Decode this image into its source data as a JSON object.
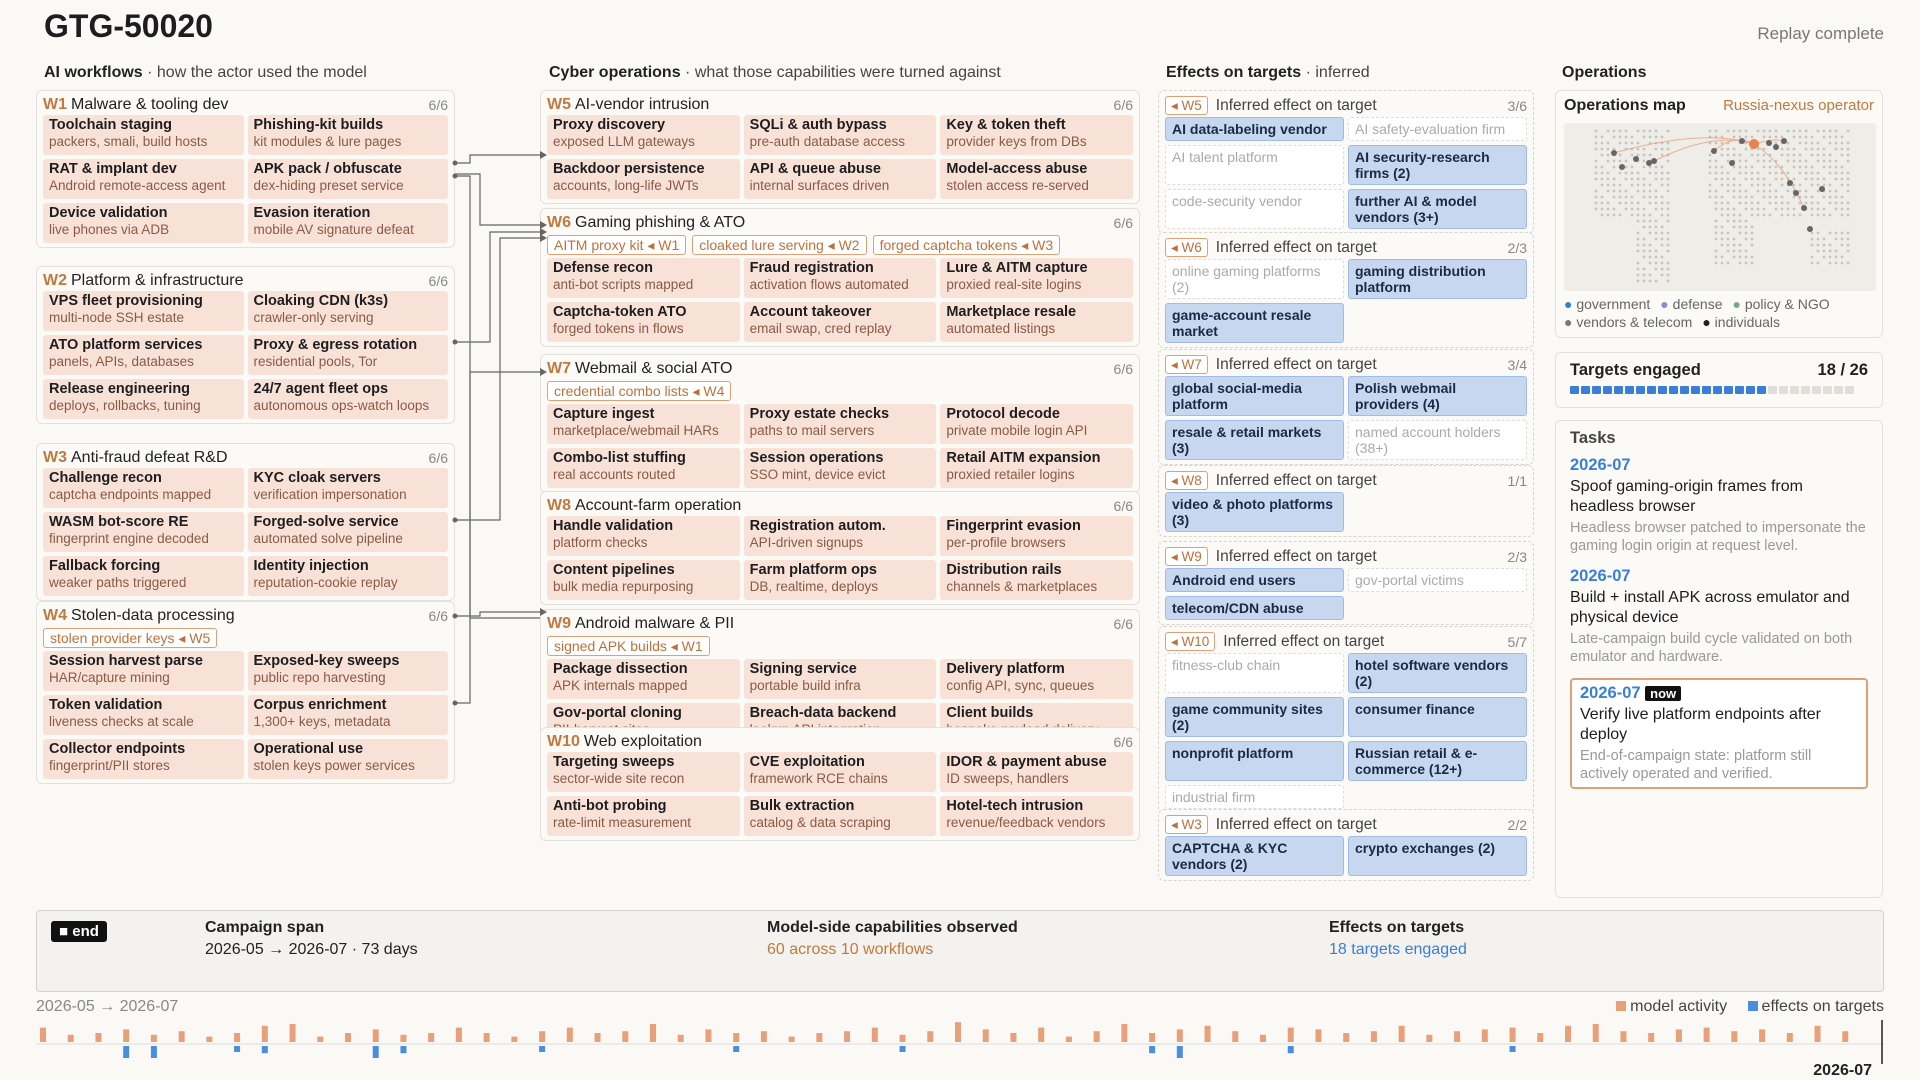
{
  "title": "GTG-50020",
  "status": "Replay complete",
  "columns": {
    "ai": {
      "title": "AI workflows",
      "sub": " · how the actor used the model"
    },
    "cyber": {
      "title": "Cyber operations",
      "sub": " · what those capabilities were turned against"
    },
    "effects": {
      "title": "Effects on targets",
      "sub": " · inferred"
    },
    "ops": {
      "title": "Operations",
      "sub": ""
    }
  },
  "workflows": [
    {
      "code": "W1",
      "name": "Malware & tooling dev",
      "count": "6/6",
      "tags": [],
      "items": [
        {
          "n": "Toolchain staging",
          "d": "packers, smali, build hosts"
        },
        {
          "n": "Phishing-kit builds",
          "d": "kit modules & lure pages"
        },
        {
          "n": "RAT & implant dev",
          "d": "Android remote-access agent"
        },
        {
          "n": "APK pack / obfuscate",
          "d": "dex-hiding preset service"
        },
        {
          "n": "Device validation",
          "d": "live phones via ADB"
        },
        {
          "n": "Evasion iteration",
          "d": "mobile AV signature defeat"
        }
      ]
    },
    {
      "code": "W2",
      "name": "Platform & infrastructure",
      "count": "6/6",
      "tags": [],
      "items": [
        {
          "n": "VPS fleet provisioning",
          "d": "multi-node SSH estate"
        },
        {
          "n": "Cloaking CDN (k3s)",
          "d": "crawler-only serving"
        },
        {
          "n": "ATO platform services",
          "d": "panels, APIs, databases"
        },
        {
          "n": "Proxy & egress rotation",
          "d": "residential pools, Tor"
        },
        {
          "n": "Release engineering",
          "d": "deploys, rollbacks, tuning"
        },
        {
          "n": "24/7 agent fleet ops",
          "d": "autonomous ops-watch loops"
        }
      ]
    },
    {
      "code": "W3",
      "name": "Anti-fraud defeat R&D",
      "count": "6/6",
      "tags": [],
      "items": [
        {
          "n": "Challenge recon",
          "d": "captcha endpoints mapped"
        },
        {
          "n": "KYC cloak servers",
          "d": "verification impersonation"
        },
        {
          "n": "WASM bot-score RE",
          "d": "fingerprint engine decoded"
        },
        {
          "n": "Forged-solve service",
          "d": "automated solve pipeline"
        },
        {
          "n": "Fallback forcing",
          "d": "weaker paths triggered"
        },
        {
          "n": "Identity injection",
          "d": "reputation-cookie replay"
        }
      ]
    },
    {
      "code": "W4",
      "name": "Stolen-data processing",
      "count": "6/6",
      "tags": [
        "stolen provider keys ◂ W5"
      ],
      "items": [
        {
          "n": "Session harvest parse",
          "d": "HAR/capture mining"
        },
        {
          "n": "Exposed-key sweeps",
          "d": "public repo harvesting"
        },
        {
          "n": "Token validation",
          "d": "liveness checks at scale"
        },
        {
          "n": "Corpus enrichment",
          "d": "1,300+ keys, metadata"
        },
        {
          "n": "Collector endpoints",
          "d": "fingerprint/PII stores"
        },
        {
          "n": "Operational use",
          "d": "stolen keys power services"
        }
      ]
    },
    {
      "code": "W5",
      "name": "AI-vendor intrusion",
      "count": "6/6",
      "tags": [],
      "items": [
        {
          "n": "Proxy discovery",
          "d": "exposed LLM gateways"
        },
        {
          "n": "SQLi & auth bypass",
          "d": "pre-auth database access"
        },
        {
          "n": "Key & token theft",
          "d": "provider keys from DBs"
        },
        {
          "n": "Backdoor persistence",
          "d": "accounts, long-life JWTs"
        },
        {
          "n": "API & queue abuse",
          "d": "internal surfaces driven"
        },
        {
          "n": "Model-access abuse",
          "d": "stolen access re-served"
        }
      ]
    },
    {
      "code": "W6",
      "name": "Gaming phishing & ATO",
      "count": "6/6",
      "tags": [
        "AITM proxy kit ◂ W1",
        "cloaked lure serving ◂ W2",
        "forged captcha tokens ◂ W3"
      ],
      "items": [
        {
          "n": "Defense recon",
          "d": "anti-bot scripts mapped"
        },
        {
          "n": "Fraud registration",
          "d": "activation flows automated"
        },
        {
          "n": "Lure & AITM capture",
          "d": "proxied real-site logins"
        },
        {
          "n": "Captcha-token ATO",
          "d": "forged tokens in flows"
        },
        {
          "n": "Account takeover",
          "d": "email swap, cred replay"
        },
        {
          "n": "Marketplace resale",
          "d": "automated listings"
        }
      ]
    },
    {
      "code": "W7",
      "name": "Webmail & social ATO",
      "count": "6/6",
      "tags": [
        "credential combo lists ◂ W4"
      ],
      "items": [
        {
          "n": "Capture ingest",
          "d": "marketplace/webmail HARs"
        },
        {
          "n": "Proxy estate checks",
          "d": "paths to mail servers"
        },
        {
          "n": "Protocol decode",
          "d": "private mobile login API"
        },
        {
          "n": "Combo-list stuffing",
          "d": "real accounts routed"
        },
        {
          "n": "Session operations",
          "d": "SSO mint, device evict"
        },
        {
          "n": "Retail AITM expansion",
          "d": "proxied retailer logins"
        }
      ]
    },
    {
      "code": "W8",
      "name": "Account-farm operation",
      "count": "6/6",
      "tags": [],
      "items": [
        {
          "n": "Handle validation",
          "d": "platform checks"
        },
        {
          "n": "Registration autom.",
          "d": "API-driven signups"
        },
        {
          "n": "Fingerprint evasion",
          "d": "per-profile browsers"
        },
        {
          "n": "Content pipelines",
          "d": "bulk media repurposing"
        },
        {
          "n": "Farm platform ops",
          "d": "DB, realtime, deploys"
        },
        {
          "n": "Distribution rails",
          "d": "channels & marketplaces"
        }
      ]
    },
    {
      "code": "W9",
      "name": "Android malware & PII",
      "count": "6/6",
      "tags": [
        "signed APK builds ◂ W1"
      ],
      "items": [
        {
          "n": "Package dissection",
          "d": "APK internals mapped"
        },
        {
          "n": "Signing service",
          "d": "portable build infra"
        },
        {
          "n": "Delivery platform",
          "d": "config API, sync, queues"
        },
        {
          "n": "Gov-portal cloning",
          "d": "PII-harvest sites"
        },
        {
          "n": "Breach-data backend",
          "d": "lookup API integration"
        },
        {
          "n": "Client builds",
          "d": "bespoke payload delivery"
        }
      ]
    },
    {
      "code": "W10",
      "name": "Web exploitation",
      "count": "6/6",
      "tags": [],
      "items": [
        {
          "n": "Targeting sweeps",
          "d": "sector-wide site recon"
        },
        {
          "n": "CVE exploitation",
          "d": "framework RCE chains"
        },
        {
          "n": "IDOR & payment abuse",
          "d": "ID sweeps, handlers"
        },
        {
          "n": "Anti-bot probing",
          "d": "rate-limit measurement"
        },
        {
          "n": "Bulk extraction",
          "d": "catalog & data scraping"
        },
        {
          "n": "Hotel-tech intrusion",
          "d": "revenue/feedback vendors"
        }
      ]
    }
  ],
  "effects": [
    {
      "code": "◂ W5",
      "label": "Inferred effect on target",
      "count": "3/6",
      "items": [
        {
          "t": "AI data-labeling vendor",
          "on": true
        },
        {
          "t": "AI safety-evaluation firm",
          "on": false
        },
        {
          "t": "AI talent platform",
          "on": false
        },
        {
          "t": "AI security-research firms (2)",
          "on": true
        },
        {
          "t": "code-security vendor",
          "on": false
        },
        {
          "t": "further AI & model vendors (3+)",
          "on": true
        }
      ]
    },
    {
      "code": "◂ W6",
      "label": "Inferred effect on target",
      "count": "2/3",
      "items": [
        {
          "t": "online gaming platforms (2)",
          "on": false
        },
        {
          "t": "gaming distribution platform",
          "on": true
        },
        {
          "t": "game-account resale market",
          "on": true
        }
      ]
    },
    {
      "code": "◂ W7",
      "label": "Inferred effect on target",
      "count": "3/4",
      "items": [
        {
          "t": "global social-media platform",
          "on": true
        },
        {
          "t": "Polish webmail providers (4)",
          "on": true
        },
        {
          "t": "resale & retail markets (3)",
          "on": true
        },
        {
          "t": "named account holders (38+)",
          "on": false
        }
      ]
    },
    {
      "code": "◂ W8",
      "label": "Inferred effect on target",
      "count": "1/1",
      "items": [
        {
          "t": "video & photo platforms (3)",
          "on": true
        }
      ]
    },
    {
      "code": "◂ W9",
      "label": "Inferred effect on target",
      "count": "2/3",
      "items": [
        {
          "t": "Android end users",
          "on": true
        },
        {
          "t": "gov-portal victims",
          "on": false
        },
        {
          "t": "telecom/CDN abuse",
          "on": true
        }
      ]
    },
    {
      "code": "◂ W10",
      "label": "Inferred effect on target",
      "count": "5/7",
      "items": [
        {
          "t": "fitness-club chain",
          "on": false
        },
        {
          "t": "hotel software vendors (2)",
          "on": true
        },
        {
          "t": "game community sites (2)",
          "on": true
        },
        {
          "t": "consumer finance",
          "on": true
        },
        {
          "t": "nonprofit platform",
          "on": true
        },
        {
          "t": "Russian retail & e-commerce (12+)",
          "on": true
        },
        {
          "t": "industrial firm",
          "on": false
        }
      ]
    },
    {
      "code": "◂ W3",
      "label": "Inferred effect on target",
      "count": "2/2",
      "items": [
        {
          "t": "CAPTCHA & KYC vendors (2)",
          "on": true
        },
        {
          "t": "crypto exchanges (2)",
          "on": true
        }
      ]
    }
  ],
  "ops": {
    "map_title": "Operations map",
    "operator": "Russia-nexus operator",
    "legend": [
      {
        "label": "government",
        "color": "#3b7dd8"
      },
      {
        "label": "defense",
        "color": "#8c8cd0"
      },
      {
        "label": "policy & NGO",
        "color": "#7aa98a"
      },
      {
        "label": "vendors & telecom",
        "color": "#777777"
      },
      {
        "label": "individuals",
        "color": "#222222"
      }
    ],
    "targets_label": "Targets engaged",
    "targets_value": "18 / 26",
    "targets_engaged": 18,
    "targets_total": 26,
    "tasks_title": "Tasks",
    "tasks": [
      {
        "date": "2026-07",
        "title": "Spoof gaming-origin frames from headless browser",
        "desc": "Headless browser patched to impersonate the gaming login origin at request level.",
        "now": false
      },
      {
        "date": "2026-07",
        "title": "Build + install APK across emulator and physical device",
        "desc": "Late-campaign build cycle validated on both emulator and hardware.",
        "now": false
      },
      {
        "date": "2026-07",
        "title": "Verify live platform endpoints after deploy",
        "desc": "End-of-campaign state: platform still actively operated and verified.",
        "now": true,
        "badge": "now"
      }
    ]
  },
  "footer": {
    "end_label": "■ end",
    "span_title": "Campaign span",
    "span_value": "2026-05 → 2026-07 · 73 days",
    "cap_title": "Model-side capabilities observed",
    "cap_value": "60 across 10 workflows",
    "eff_title": "Effects on targets",
    "eff_value": "18 targets engaged"
  },
  "timeline": {
    "range_label": "2026-05 → 2026-07",
    "legend_model": "model activity",
    "legend_effects": "effects on targets",
    "end_date": "2026-07",
    "model_color": "#e8a07a",
    "effects_color": "#4a8ee0",
    "model_bars": [
      0.8,
      0.4,
      0.5,
      0.7,
      0.4,
      0.6,
      0.3,
      0.5,
      0.9,
      1.0,
      0.3,
      0.5,
      0.7,
      0.4,
      0.5,
      0.8,
      0.5,
      0.3,
      0.6,
      0.8,
      0.5,
      0.6,
      1.0,
      0.4,
      0.7,
      0.5,
      0.6,
      0.3,
      0.5,
      0.6,
      0.8,
      0.4,
      0.6,
      1.1,
      0.7,
      0.5,
      0.8,
      0.3,
      0.6,
      1.0,
      0.5,
      0.7,
      0.9,
      0.6,
      0.4,
      0.8,
      0.7,
      0.5,
      0.6,
      0.9,
      0.4,
      0.6,
      0.7,
      0.8,
      0.5,
      0.9,
      1.0,
      0.6,
      0.5,
      0.7,
      0.8,
      0.6,
      0.7,
      0.5,
      0.9,
      0.6
    ],
    "effect_bars": [
      0,
      0,
      0,
      1.0,
      1.0,
      0,
      0,
      0.5,
      0.6,
      0,
      0,
      0,
      1.0,
      0.6,
      0,
      0,
      0,
      0,
      0.5,
      0,
      0,
      0,
      0,
      0,
      0,
      0.5,
      0,
      0,
      0,
      0,
      0,
      0.5,
      0,
      0,
      0,
      0,
      0,
      0,
      0,
      0,
      0.6,
      1.0,
      0,
      0,
      0,
      0.6,
      0,
      0,
      0,
      0,
      0,
      0,
      0,
      0.5,
      0,
      0,
      0,
      0,
      0,
      0,
      0,
      0,
      0,
      0,
      0,
      0
    ]
  }
}
